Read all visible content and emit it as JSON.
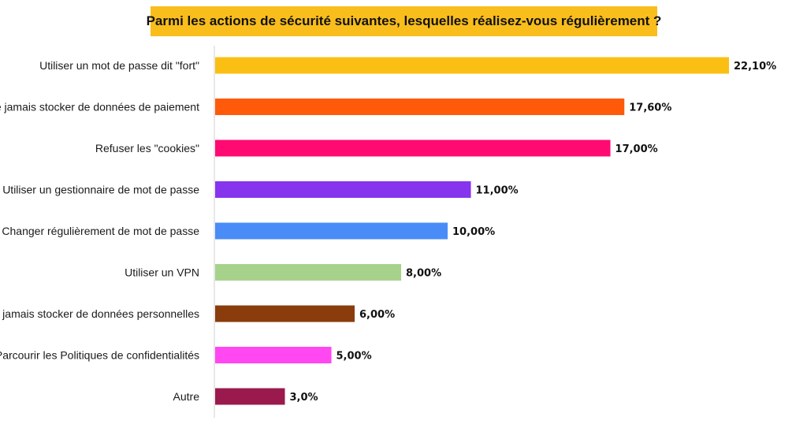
{
  "chart_data": {
    "type": "bar",
    "orientation": "horizontal",
    "title": "Parmi les actions de sécurité suivantes, lesquelles réalisez-vous régulièrement ?",
    "categories": [
      "Utiliser un mot de passe dit \"fort\"",
      "Ne jamais stocker de données de paiement",
      "Refuser les \"cookies\"",
      "Utiliser un gestionnaire de mot de passe",
      "Changer régulièrement de mot de passe",
      "Utiliser un VPN",
      "Ne jamais stocker de données personnelles",
      "Parcourir les Politiques de confidentialités",
      "Autre"
    ],
    "values": [
      22.1,
      17.6,
      17.0,
      11.0,
      10.0,
      8.0,
      6.0,
      5.0,
      3.0
    ],
    "value_labels": [
      "22,10%",
      "17,60%",
      "17,00%",
      "11,00%",
      "10,00%",
      "8,00%",
      "6,00%",
      "5,00%",
      "3,0%"
    ],
    "colors": [
      "#FBBF14",
      "#FF5A0A",
      "#FF0A72",
      "#8634EE",
      "#4A8CF7",
      "#A7D28B",
      "#8A3C0C",
      "#FF47F2",
      "#9B1A4D"
    ],
    "xlim": [
      0,
      22.1
    ],
    "grid": false,
    "legend": "none",
    "title_background": "#F9BE1C"
  }
}
